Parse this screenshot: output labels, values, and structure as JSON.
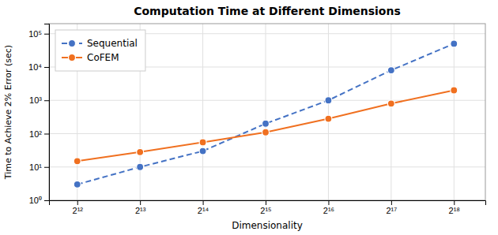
{
  "chart_data": {
    "type": "line",
    "title": "Computation Time at Different Dimensions",
    "x_label": "Dimensionality",
    "y_label": "Time to Achieve 2% Error (sec)",
    "x": [
      4096,
      8192,
      16384,
      32768,
      65536,
      131072,
      262144
    ],
    "series": [
      {
        "name": "Sequential",
        "color": "#4472c4",
        "line_style": "dashed",
        "marker": "circle",
        "values": [
          3.0,
          10.0,
          30.0,
          200.0,
          1000.0,
          8000.0,
          50000.0
        ]
      },
      {
        "name": "CoFEM",
        "color": "#f07020",
        "line_style": "solid",
        "marker": "circle",
        "values": [
          15.0,
          28.0,
          55.0,
          110.0,
          280.0,
          800.0,
          2000.0
        ]
      }
    ],
    "log": true,
    "xlim": [
      2998.45,
      370727.6
    ],
    "xticks": [
      {
        "value": 4096,
        "label": "2¹²"
      },
      {
        "value": 8192,
        "label": "2¹³"
      },
      {
        "value": 16384,
        "label": "2¹⁴"
      },
      {
        "value": 32768,
        "label": "2¹⁵"
      },
      {
        "value": 65536,
        "label": "2¹⁶"
      },
      {
        "value": 131072,
        "label": "2¹⁷"
      },
      {
        "value": 262144,
        "label": "2¹⁸"
      }
    ],
    "ylim": [
      1,
      200000
    ],
    "yticks": [
      {
        "value": 1,
        "label": "10⁰"
      },
      {
        "value": 10,
        "label": "10¹"
      },
      {
        "value": 100,
        "label": "10²"
      },
      {
        "value": 1000,
        "label": "10³"
      },
      {
        "value": 10000,
        "label": "10⁴"
      },
      {
        "value": 100000,
        "label": "10⁵"
      }
    ],
    "grid": true,
    "legend": "upper left"
  }
}
